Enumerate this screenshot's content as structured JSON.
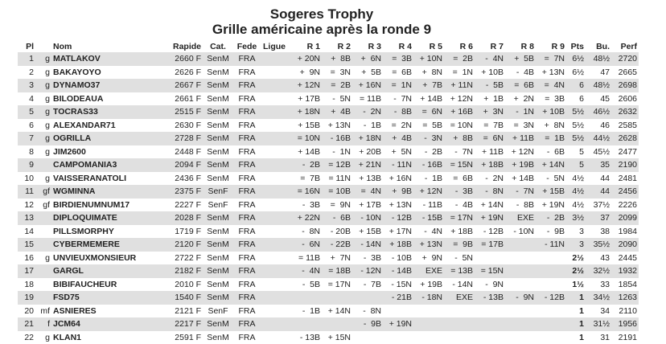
{
  "title": "Sogeres Trophy",
  "subtitle": "Grille américaine après la ronde 9",
  "headers": [
    "Pl",
    "",
    "Nom",
    "Rapide",
    "Cat.",
    "Fede",
    "Ligue",
    "R 1",
    "R 2",
    "R 3",
    "R 4",
    "R 5",
    "R 6",
    "R 7",
    "R 8",
    "R 9",
    "Pts",
    "Bu.",
    "Perf"
  ],
  "rows": [
    [
      "1",
      "g",
      "MATLAKOV",
      "2660 F",
      "SenM",
      "FRA",
      "",
      "+ 20N",
      "+  8B",
      "+  6N",
      "=  3B",
      "+ 10N",
      "=  2B",
      "-  4N",
      "+  5B",
      "=  7N",
      "6½",
      "48½",
      "2720"
    ],
    [
      "2",
      "g",
      "BAKAYOYO",
      "2626 F",
      "SenM",
      "FRA",
      "",
      "+  9N",
      "=  3N",
      "+  5B",
      "=  6B",
      "+  8N",
      "=  1N",
      "+ 10B",
      "-  4B",
      "+ 13N",
      "6½",
      "47",
      "2665"
    ],
    [
      "3",
      "g",
      "DYNAMO37",
      "2667 F",
      "SenM",
      "FRA",
      "",
      "+ 12N",
      "=  2B",
      "+ 16N",
      "=  1N",
      "+  7B",
      "+ 11N",
      "-  5B",
      "=  6B",
      "=  4N",
      "6",
      "48½",
      "2698"
    ],
    [
      "4",
      "g",
      "BILODEAUA",
      "2661 F",
      "SenM",
      "FRA",
      "",
      "+ 17B",
      "-  5N",
      "= 11B",
      "-  7N",
      "+ 14B",
      "+ 12N",
      "+  1B",
      "+  2N",
      "=  3B",
      "6",
      "45",
      "2606"
    ],
    [
      "5",
      "g",
      "TOCRAS33",
      "2515 F",
      "SenM",
      "FRA",
      "",
      "+ 18N",
      "+  4B",
      "-  2N",
      "-  8B",
      "=  6N",
      "+ 16B",
      "+  3N",
      "-  1N",
      "+ 10B",
      "5½",
      "46½",
      "2632"
    ],
    [
      "6",
      "g",
      "ALEXANDAR71",
      "2630 F",
      "SenM",
      "FRA",
      "",
      "+ 15B",
      "+ 13N",
      "-  1B",
      "=  2N",
      "=  5B",
      "= 10N",
      "=  7B",
      "=  3N",
      "+  8N",
      "5½",
      "46",
      "2585"
    ],
    [
      "7",
      "g",
      "OGRILLA",
      "2728 F",
      "SenM",
      "FRA",
      "",
      "= 10N",
      "- 16B",
      "+ 18N",
      "+  4B",
      "-  3N",
      "+  8B",
      "=  6N",
      "+ 11B",
      "=  1B",
      "5½",
      "44½",
      "2628"
    ],
    [
      "8",
      "g",
      "JIM2600",
      "2448 F",
      "SenM",
      "FRA",
      "",
      "+ 14B",
      "-  1N",
      "+ 20B",
      "+  5N",
      "-  2B",
      "-  7N",
      "+ 11B",
      "+ 12N",
      "-  6B",
      "5",
      "45½",
      "2477"
    ],
    [
      "9",
      "",
      "CAMPOMANIA3",
      "2094 F",
      "SenM",
      "FRA",
      "",
      "-  2B",
      "= 12B",
      "+ 21N",
      "- 11N",
      "- 16B",
      "= 15N",
      "+ 18B",
      "+ 19B",
      "+ 14N",
      "5",
      "35",
      "2190"
    ],
    [
      "10",
      "g",
      "VAISSERANATOLI",
      "2436 F",
      "SenM",
      "FRA",
      "",
      "=  7B",
      "= 11N",
      "+ 13B",
      "+ 16N",
      "-  1B",
      "=  6B",
      "-  2N",
      "+ 14B",
      "-  5N",
      "4½",
      "44",
      "2481"
    ],
    [
      "11",
      "gf",
      "WGMINNA",
      "2375 F",
      "SenF",
      "FRA",
      "",
      "= 16N",
      "= 10B",
      "=  4N",
      "+  9B",
      "+ 12N",
      "-  3B",
      "-  8N",
      "-  7N",
      "+ 15B",
      "4½",
      "44",
      "2456"
    ],
    [
      "12",
      "gf",
      "BIRDIENUMNUM17",
      "2227 F",
      "SenF",
      "FRA",
      "",
      "-  3B",
      "=  9N",
      "+ 17B",
      "+ 13N",
      "- 11B",
      "-  4B",
      "+ 14N",
      "-  8B",
      "+ 19N",
      "4½",
      "37½",
      "2226"
    ],
    [
      "13",
      "",
      "DIPLOQUIMATE",
      "2028 F",
      "SenM",
      "FRA",
      "",
      "+ 22N",
      "-  6B",
      "- 10N",
      "- 12B",
      "- 15B",
      "= 17N",
      "+ 19N",
      "EXE",
      "-  2B",
      "3½",
      "37",
      "2099"
    ],
    [
      "14",
      "",
      "PILLSMORPHY",
      "1719 F",
      "SenM",
      "FRA",
      "",
      "-  8N",
      "- 20B",
      "+ 15B",
      "+ 17N",
      "-  4N",
      "+ 18B",
      "- 12B",
      "- 10N",
      "-  9B",
      "3",
      "38",
      "1984"
    ],
    [
      "15",
      "",
      "CYBERMEMERE",
      "2120 F",
      "SenM",
      "FRA",
      "",
      "-  6N",
      "- 22B",
      "- 14N",
      "+ 18B",
      "+ 13N",
      "=  9B",
      "= 17B",
      "",
      "- 11N",
      "3",
      "35½",
      "2090"
    ],
    [
      "16",
      "g",
      "UNVIEUXMONSIEUR",
      "2722 F",
      "SenM",
      "FRA",
      "",
      "= 11B",
      "+  7N",
      "-  3B",
      "- 10B",
      "+  9N",
      "-  5N",
      "",
      "",
      "",
      "2½",
      "43",
      "2445"
    ],
    [
      "17",
      "",
      "GARGL",
      "2182 F",
      "SenM",
      "FRA",
      "",
      "-  4N",
      "= 18B",
      "- 12N",
      "- 14B",
      "EXE",
      "= 13B",
      "= 15N",
      "",
      "",
      "2½",
      "32½",
      "1932"
    ],
    [
      "18",
      "",
      "BIBIFAUCHEUR",
      "2010 F",
      "SenM",
      "FRA",
      "",
      "-  5B",
      "= 17N",
      "-  7B",
      "- 15N",
      "+ 19B",
      "- 14N",
      "-  9N",
      "",
      "",
      "1½",
      "33",
      "1854"
    ],
    [
      "19",
      "",
      "FSD75",
      "1540 F",
      "SenM",
      "FRA",
      "",
      "",
      "",
      "",
      "- 21B",
      "- 18N",
      "EXE",
      "- 13B",
      "-  9N",
      "- 12B",
      "1",
      "34½",
      "1263"
    ],
    [
      "20",
      "mf",
      "ASNIERES",
      "2121 F",
      "SenF",
      "FRA",
      "",
      "-  1B",
      "+ 14N",
      "-  8N",
      "",
      "",
      "",
      "",
      "",
      "",
      "1",
      "34",
      "2110"
    ],
    [
      "21",
      "f",
      "JCM64",
      "2217 F",
      "SenM",
      "FRA",
      "",
      "",
      "",
      "-  9B",
      "+ 19N",
      "",
      "",
      "",
      "",
      "",
      "1",
      "31½",
      "1956"
    ],
    [
      "22",
      "g",
      "KLAN1",
      "2591 F",
      "SenM",
      "FRA",
      "",
      "- 13B",
      "+ 15N",
      "",
      "",
      "",
      "",
      "",
      "",
      "",
      "1",
      "31",
      "2191"
    ]
  ]
}
